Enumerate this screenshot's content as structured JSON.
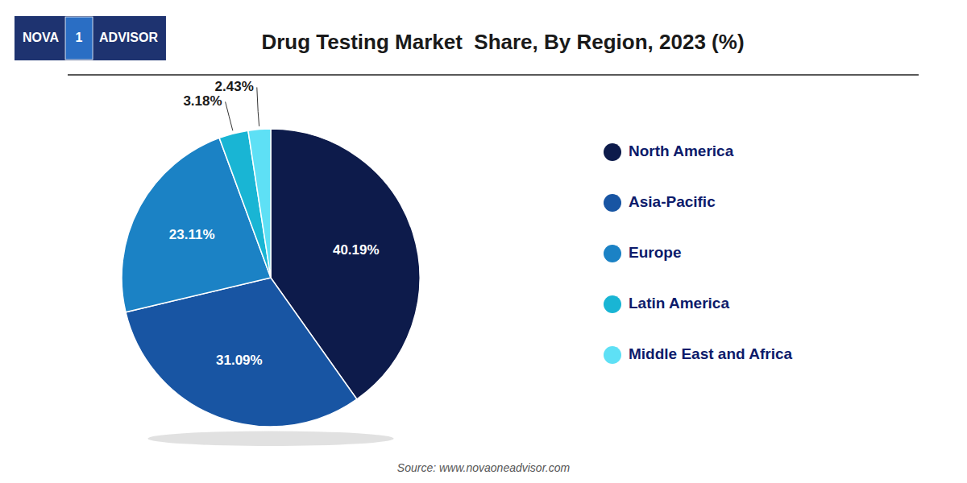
{
  "chart_data": {
    "type": "pie",
    "title": "Drug Testing Market  Share, By Region, 2023 (%)",
    "categories": [
      "North America",
      "Asia-Pacific",
      "Europe",
      "Latin America",
      "Middle East and Africa"
    ],
    "values": [
      40.19,
      31.09,
      23.11,
      3.18,
      2.43
    ],
    "value_labels": [
      "40.19%",
      "31.09%",
      "23.11%",
      "3.18%",
      "2.43%"
    ],
    "colors": [
      "#0d1b4b",
      "#1855a3",
      "#1b82c5",
      "#19b5d4",
      "#5ee0f5"
    ],
    "data_labels": true,
    "legend": "right",
    "annotations": [
      "NOVA",
      "1",
      "ADVISOR",
      "Source: www.novaoneadvisor.com"
    ]
  }
}
